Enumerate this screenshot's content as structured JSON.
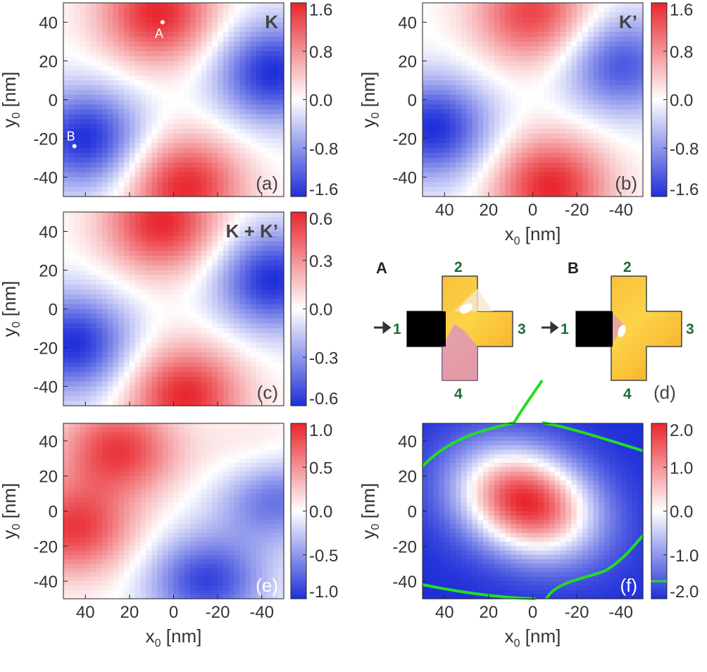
{
  "chart_data": [
    {
      "id": "a",
      "type": "heatmap",
      "panel_label": "(a)",
      "title": "K",
      "xlabel": "",
      "xlim": [
        50,
        -50
      ],
      "ylabel_main": "y",
      "ylabel_sub": "0",
      "ylabel_unit": " [nm]",
      "ylim": [
        -50,
        50
      ],
      "yticks": [
        "40",
        "20",
        "0",
        "-20",
        "-40"
      ],
      "colorbar": {
        "range": [
          -1.6,
          1.6
        ],
        "ticks": [
          "1.6",
          "0.8",
          "0.0",
          "-0.8",
          "-1.6"
        ]
      },
      "blobs": [
        {
          "x": 7,
          "y": 45,
          "v": 1.6
        },
        {
          "x": -5,
          "y": -45,
          "v": 1.6
        },
        {
          "x": -45,
          "y": 14,
          "v": -1.6
        },
        {
          "x": 40,
          "y": -20,
          "v": -1.6
        }
      ],
      "annotations": [
        {
          "label": "A",
          "x": 5,
          "y": 40
        },
        {
          "label": "B",
          "x": 45,
          "y": -24
        }
      ]
    },
    {
      "id": "b",
      "type": "heatmap",
      "panel_label": "(b)",
      "title": "K’",
      "xlabel_main": "x",
      "xlabel_sub": "0",
      "xlabel_unit": " [nm]",
      "xlim": [
        50,
        -50
      ],
      "xticks": [
        "40",
        "20",
        "0",
        "-20",
        "-40"
      ],
      "ylabel_main": "y",
      "ylabel_sub": "0",
      "ylabel_unit": " [nm]",
      "ylim": [
        -50,
        50
      ],
      "yticks": [
        "40",
        "20",
        "0",
        "-20",
        "-40"
      ],
      "colorbar": {
        "range": [
          -1.6,
          1.6
        ],
        "ticks": [
          "1.6",
          "0.8",
          "0.0",
          "-0.8",
          "-1.6"
        ]
      },
      "blobs": [
        {
          "x": 0,
          "y": 45,
          "v": 1.4
        },
        {
          "x": -8,
          "y": -45,
          "v": 1.6
        },
        {
          "x": -40,
          "y": 18,
          "v": -1.3
        },
        {
          "x": 45,
          "y": -15,
          "v": -1.6
        }
      ]
    },
    {
      "id": "c",
      "type": "heatmap",
      "panel_label": "(c)",
      "title": "K + K’",
      "ylabel_main": "y",
      "ylabel_sub": "0",
      "ylabel_unit": " [nm]",
      "xlim": [
        50,
        -50
      ],
      "ylim": [
        -50,
        50
      ],
      "yticks": [
        "40",
        "20",
        "0",
        "-20",
        "-40"
      ],
      "colorbar": {
        "range": [
          -0.6,
          0.6
        ],
        "ticks": [
          "0.6",
          "0.3",
          "0.0",
          "-0.3",
          "-0.6"
        ]
      },
      "blobs": [
        {
          "x": 5,
          "y": 45,
          "v": 0.6
        },
        {
          "x": -5,
          "y": -45,
          "v": 0.6
        },
        {
          "x": -45,
          "y": 15,
          "v": -0.6
        },
        {
          "x": 45,
          "y": -18,
          "v": -0.6
        }
      ]
    },
    {
      "id": "e",
      "type": "heatmap",
      "panel_label": "(e)",
      "title": "",
      "xlabel_main": "x",
      "xlabel_sub": "0",
      "xlabel_unit": " [nm]",
      "xlim": [
        50,
        -50
      ],
      "xticks": [
        "40",
        "20",
        "0",
        "-20",
        "-40"
      ],
      "ylabel_main": "y",
      "ylabel_sub": "0",
      "ylabel_unit": " [nm]",
      "ylim": [
        -50,
        50
      ],
      "yticks": [
        "40",
        "20",
        "0",
        "-20",
        "-40"
      ],
      "colorbar": {
        "range": [
          -1.0,
          1.0
        ],
        "ticks": [
          "1.0",
          "0.5",
          "0.0",
          "-0.5",
          "-1.0"
        ]
      },
      "blobs": [
        {
          "x": 25,
          "y": 35,
          "v": 0.9
        },
        {
          "x": 45,
          "y": -10,
          "v": 0.9
        },
        {
          "x": -45,
          "y": 10,
          "v": -0.9
        },
        {
          "x": -15,
          "y": -40,
          "v": -0.9
        },
        {
          "x": -40,
          "y": 25,
          "v": 0.4
        }
      ]
    },
    {
      "id": "f",
      "type": "heatmap",
      "panel_label": "(f)",
      "title": "",
      "xlabel_main": "x",
      "xlabel_sub": "0",
      "xlabel_unit": " [nm]",
      "xlim": [
        50,
        -50
      ],
      "xticks": [
        "40",
        "20",
        "0",
        "-20",
        "-40"
      ],
      "ylabel_main": "y",
      "ylabel_sub": "0",
      "ylabel_unit": " [nm]",
      "ylim": [
        -50,
        50
      ],
      "yticks": [
        "40",
        "20",
        "0",
        "-20",
        "-40"
      ],
      "colorbar": {
        "range": [
          -2.0,
          2.0
        ],
        "ticks": [
          "2.0",
          "1.0",
          "0.0",
          "-1.0",
          "-2.0"
        ],
        "marker_value": -1.6
      },
      "center_peak": {
        "x": 3,
        "y": 5,
        "v": 2.0
      },
      "contour_value": -1.6
    }
  ],
  "panel_d": {
    "panel_label": "(d)",
    "devices": [
      {
        "name": "A",
        "leads": [
          "1",
          "2",
          "3",
          "4"
        ]
      },
      {
        "name": "B",
        "leads": [
          "1",
          "2",
          "3",
          "4"
        ]
      }
    ]
  },
  "colors": {
    "red": "#e8262d",
    "blue": "#1f2fd9",
    "contour": "#22dd22",
    "lead_label": "#1e6b3a"
  }
}
